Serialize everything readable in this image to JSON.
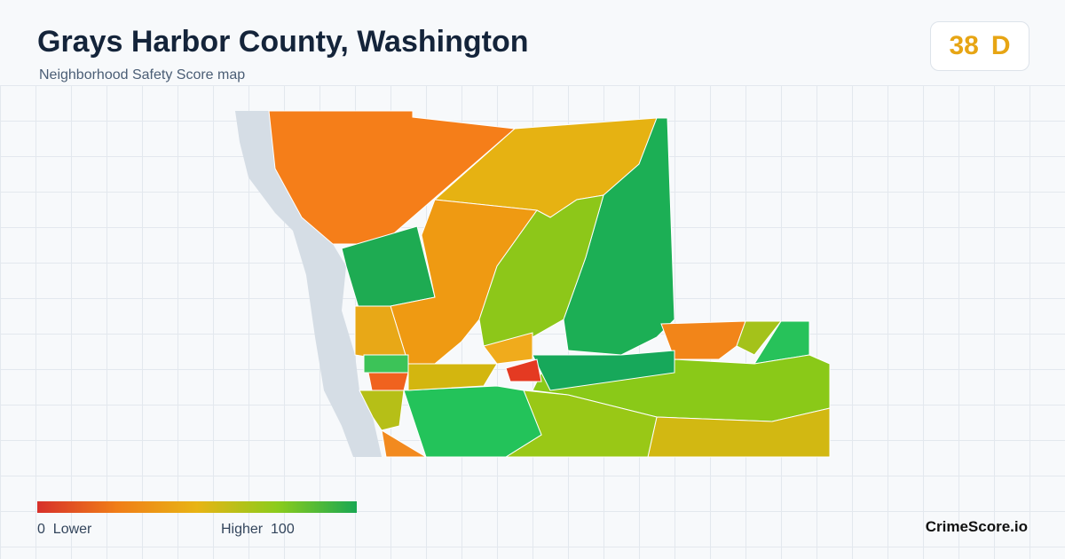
{
  "header": {
    "title": "Grays Harbor County, Washington",
    "subtitle": "Neighborhood Safety Score map"
  },
  "badge": {
    "score": "38",
    "grade": "D"
  },
  "legend": {
    "min": "0",
    "min_label": "Lower",
    "max_label": "Higher",
    "max": "100"
  },
  "brand": "CrimeScore.io"
}
